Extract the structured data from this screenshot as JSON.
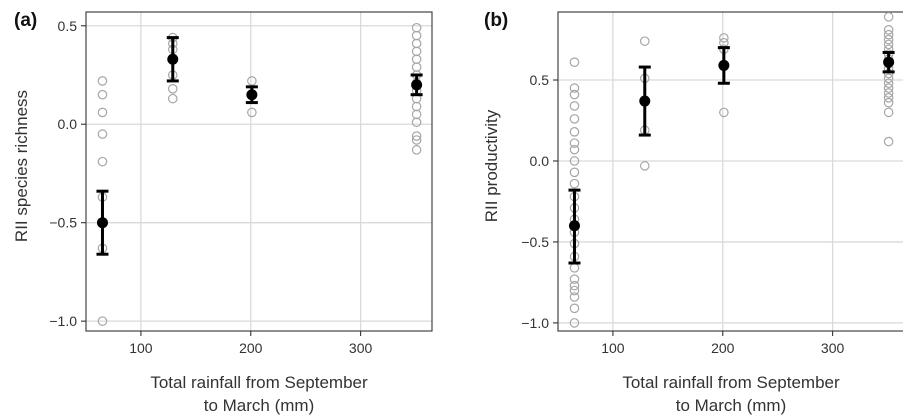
{
  "colors": {
    "grid": "#d9d9d9",
    "raw_point": "#a6a6a6",
    "mean": "#000000",
    "axis": "#333333"
  },
  "chart_data": [
    {
      "type": "scatter",
      "panel_label": "(a)",
      "xlabel_line1": "Total rainfall from September",
      "xlabel_line2": "to March (mm)",
      "ylabel": "RII species richness",
      "xlim": [
        50,
        365
      ],
      "ylim": [
        -1.05,
        0.57
      ],
      "x_ticks": [
        100,
        200,
        300
      ],
      "x_tick_labels": [
        "100",
        "200",
        "300"
      ],
      "y_ticks": [
        -1.0,
        -0.5,
        0.0,
        0.5
      ],
      "y_tick_labels": [
        "−1.0",
        "−0.5",
        "0.0",
        "0.5"
      ],
      "grid": true,
      "raw_points": [
        {
          "x": 65,
          "y": [
            0.22,
            0.15,
            0.06,
            -0.05,
            -0.19,
            -0.37,
            -0.63,
            -1.0
          ]
        },
        {
          "x": 129,
          "y": [
            0.44,
            0.41,
            0.38,
            0.25,
            0.18,
            0.13
          ]
        },
        {
          "x": 201,
          "y": [
            0.22,
            0.15,
            0.06
          ]
        },
        {
          "x": 351,
          "y": [
            0.49,
            0.45,
            0.41,
            0.37,
            0.33,
            0.29,
            0.25,
            0.21,
            0.17,
            0.13,
            0.09,
            0.05,
            0.01,
            -0.06,
            -0.08,
            -0.13
          ]
        }
      ],
      "means": [
        {
          "x": 65,
          "y": -0.5,
          "lower": -0.66,
          "upper": -0.34
        },
        {
          "x": 129,
          "y": 0.33,
          "lower": 0.22,
          "upper": 0.44
        },
        {
          "x": 201,
          "y": 0.15,
          "lower": 0.11,
          "upper": 0.19
        },
        {
          "x": 351,
          "y": 0.2,
          "lower": 0.15,
          "upper": 0.25
        }
      ]
    },
    {
      "type": "scatter",
      "panel_label": "(b)",
      "xlabel_line1": "Total rainfall from September",
      "xlabel_line2": "to March (mm)",
      "ylabel": "RII productivity",
      "xlim": [
        50,
        365
      ],
      "ylim": [
        -1.05,
        0.92
      ],
      "x_ticks": [
        100,
        200,
        300
      ],
      "x_tick_labels": [
        "100",
        "200",
        "300"
      ],
      "y_ticks": [
        -1.0,
        -0.5,
        0.0,
        0.5
      ],
      "y_tick_labels": [
        "−1.0",
        "−0.5",
        "0.0",
        "0.5"
      ],
      "grid": true,
      "raw_points": [
        {
          "x": 65,
          "y": [
            0.61,
            0.45,
            0.41,
            0.34,
            0.26,
            0.18,
            0.11,
            0.07,
            0.0,
            -0.07,
            -0.14,
            -0.22,
            -0.29,
            -0.36,
            -0.44,
            -0.51,
            -0.59,
            -0.66,
            -0.73,
            -0.77,
            -0.8,
            -0.84,
            -0.91,
            -1.0
          ]
        },
        {
          "x": 129,
          "y": [
            0.74,
            0.51,
            0.37,
            0.19,
            -0.03
          ]
        },
        {
          "x": 201,
          "y": [
            0.76,
            0.73,
            0.69,
            0.3
          ]
        },
        {
          "x": 351,
          "y": [
            0.89,
            0.81,
            0.78,
            0.75,
            0.72,
            0.69,
            0.66,
            0.63,
            0.6,
            0.57,
            0.54,
            0.51,
            0.48,
            0.45,
            0.42,
            0.39,
            0.36,
            0.3,
            0.12
          ]
        }
      ],
      "means": [
        {
          "x": 65,
          "y": -0.4,
          "lower": -0.63,
          "upper": -0.18
        },
        {
          "x": 129,
          "y": 0.37,
          "lower": 0.16,
          "upper": 0.58
        },
        {
          "x": 201,
          "y": 0.59,
          "lower": 0.48,
          "upper": 0.7
        },
        {
          "x": 351,
          "y": 0.61,
          "lower": 0.55,
          "upper": 0.67
        }
      ]
    }
  ]
}
